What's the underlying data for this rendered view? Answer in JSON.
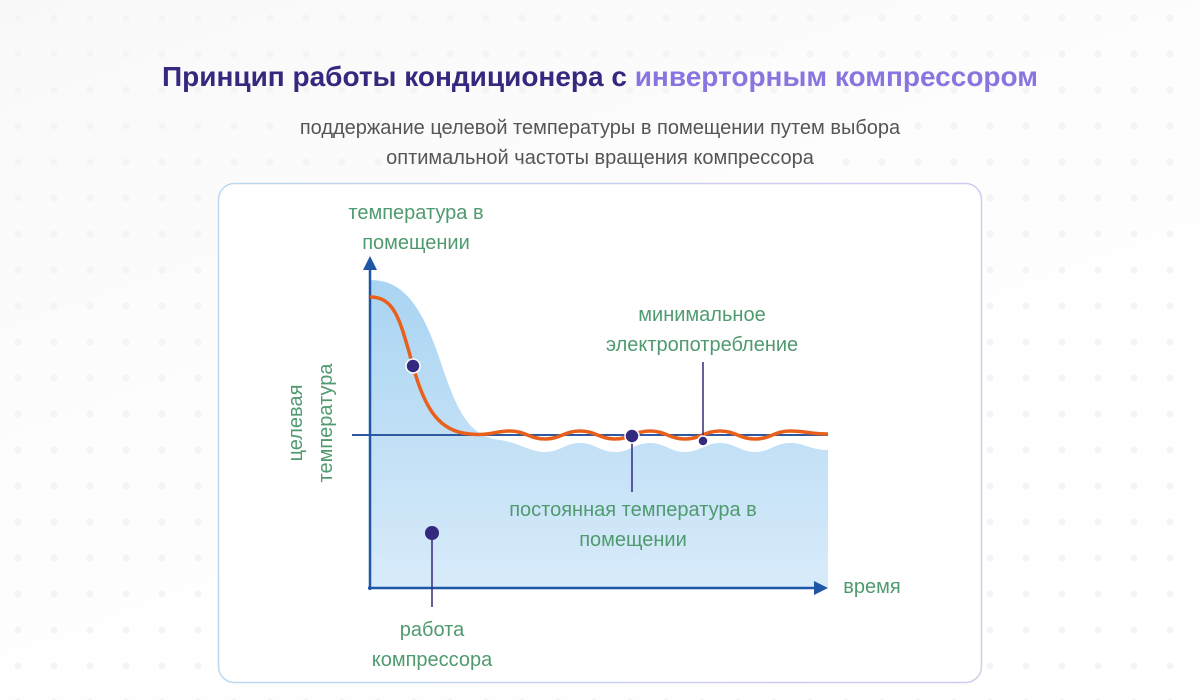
{
  "header": {
    "title": [
      "Принцип работы кондиционера с ",
      "инверторным компрессором"
    ],
    "subtitle": [
      "поддержание целевой температуры в помещении путем выбора",
      "оптимальной частоты вращения компрессора"
    ]
  },
  "diagram": {
    "room_temperature": [
      "температура в",
      "помещении"
    ],
    "target_temperature": [
      "целевая",
      "температура"
    ],
    "min_power": [
      "минимальное",
      "электропотребление"
    ],
    "constant_temperature": [
      "постоянная температура в",
      "помещении"
    ],
    "compressor": [
      "работа",
      "компрессора"
    ],
    "time": "время"
  }
}
